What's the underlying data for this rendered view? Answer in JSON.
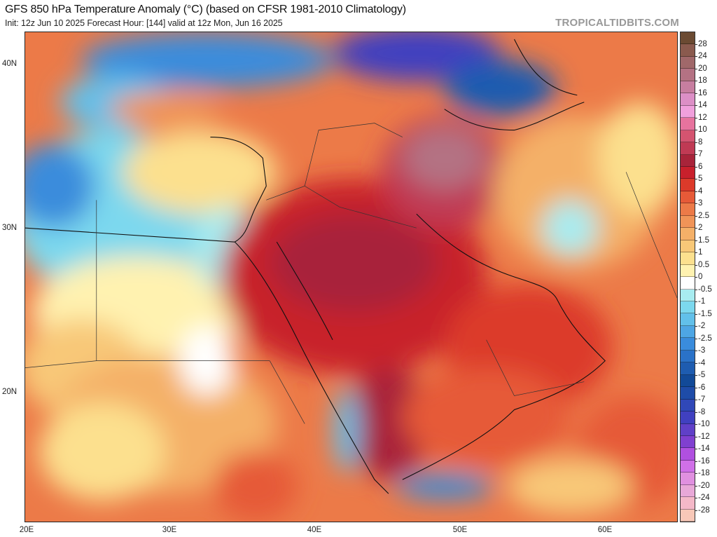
{
  "header": {
    "title": "GFS 850 hPa Temperature Anomaly (°C) (based on CFSR 1981-2010 Climatology)",
    "subtitle": "Init: 12z Jun 10 2025   Forecast Hour: [144]   valid at 12z Mon, Jun 16 2025",
    "brand": "TROPICALTIDBITS.COM"
  },
  "map": {
    "lat_labels": [
      "40N",
      "30N",
      "20N"
    ],
    "lon_labels": [
      "20E",
      "30E",
      "40E",
      "50E",
      "60E"
    ]
  },
  "colorbar": {
    "labels": [
      "28",
      "24",
      "20",
      "18",
      "16",
      "14",
      "12",
      "10",
      "8",
      "7",
      "6",
      "5",
      "4",
      "3",
      "2.5",
      "2",
      "1.5",
      "1",
      "0.5",
      "0",
      "-0.5",
      "-1",
      "-1.5",
      "-2",
      "-2.5",
      "-3",
      "-4",
      "-5",
      "-6",
      "-7",
      "-8",
      "-10",
      "-12",
      "-14",
      "-16",
      "-18",
      "-20",
      "-24",
      "-28"
    ],
    "colors": [
      "#6b4a32",
      "#8a5a4e",
      "#a0686a",
      "#b47283",
      "#c77ea0",
      "#dc8fc6",
      "#f0a0dc",
      "#e6739e",
      "#d45470",
      "#c03a54",
      "#a8243a",
      "#c8202c",
      "#dc3a2a",
      "#e65a38",
      "#ec7a48",
      "#f09458",
      "#f4b068",
      "#f8c878",
      "#fce08e",
      "#fff2b0",
      "#ffffff",
      "#a8ecf0",
      "#7cd8ee",
      "#62c0ea",
      "#4ea6e4",
      "#3a8cdc",
      "#2a72c8",
      "#1e5cb0",
      "#124a98",
      "#1e4ca8",
      "#3048b8",
      "#4040c0",
      "#6040c8",
      "#8040d0",
      "#b050e0",
      "#d070e8",
      "#e090e0",
      "#e8a8d8",
      "#f4b8c8",
      "#f8c8b8"
    ]
  }
}
